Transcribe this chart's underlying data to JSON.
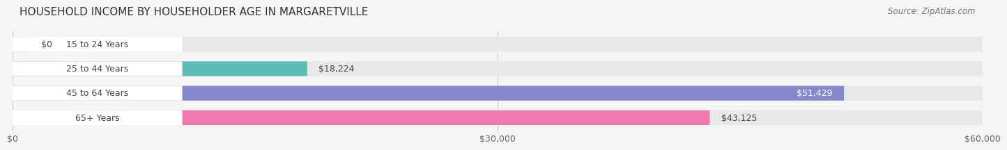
{
  "title": "HOUSEHOLD INCOME BY HOUSEHOLDER AGE IN MARGARETVILLE",
  "source": "Source: ZipAtlas.com",
  "categories": [
    "15 to 24 Years",
    "25 to 44 Years",
    "45 to 64 Years",
    "65+ Years"
  ],
  "values": [
    0,
    18224,
    51429,
    43125
  ],
  "value_labels": [
    "$0",
    "$18,224",
    "$51,429",
    "$43,125"
  ],
  "bar_colors": [
    "#cc99cc",
    "#5bbcb8",
    "#8888cc",
    "#f07ab0"
  ],
  "bar_bg_color": "#e8e8e8",
  "label_bg_color": "#ffffff",
  "xlim": [
    0,
    60000
  ],
  "xticks": [
    0,
    30000,
    60000
  ],
  "xticklabels": [
    "$0",
    "$30,000",
    "$60,000"
  ],
  "title_fontsize": 11,
  "source_fontsize": 8.5,
  "label_fontsize": 9,
  "tick_fontsize": 9,
  "fig_bg_color": "#f5f5f5",
  "grid_color": "#cccccc",
  "text_color": "#444444",
  "value_label_inside_color": "#ffffff",
  "value_label_outside_color": "#444444"
}
